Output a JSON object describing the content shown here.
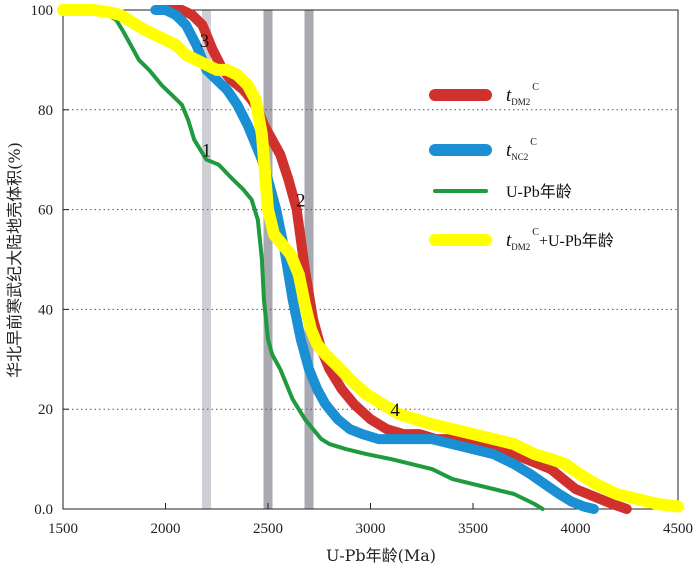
{
  "chart_data": {
    "type": "line",
    "xlabel": "U-Pb年龄(Ma)",
    "ylabel": "华北早前寒武纪大陆地壳体积(%)",
    "xlim": [
      1500,
      4500
    ],
    "ylim": [
      0,
      100
    ],
    "xticks": [
      "1500",
      "2000",
      "2500",
      "3000",
      "3500",
      "4000",
      "4500"
    ],
    "xtick_values": [
      1500,
      2000,
      2500,
      3000,
      3500,
      4000,
      4500
    ],
    "yticks": [
      "0.0",
      "20",
      "40",
      "60",
      "80",
      "100"
    ],
    "ytick_values": [
      0,
      20,
      40,
      60,
      80,
      100
    ],
    "grid": "horizontal dotted",
    "legend_position": "right",
    "vertical_bands": [
      {
        "x": 2200,
        "color": "#cfcfd6"
      },
      {
        "x": 2500,
        "color": "#a9a9b2"
      },
      {
        "x": 2700,
        "color": "#a9a9b2"
      }
    ],
    "series": [
      {
        "name": "tDM2C",
        "legend": {
          "main": "t",
          "sub": "DM2",
          "sup": "C",
          "rest": ""
        },
        "color": "#d0312d",
        "width": 10,
        "x": [
          1960,
          2020,
          2080,
          2130,
          2180,
          2230,
          2280,
          2320,
          2380,
          2420,
          2450,
          2480,
          2520,
          2560,
          2600,
          2640,
          2680,
          2720,
          2760,
          2800,
          2860,
          2920,
          3000,
          3080,
          3160,
          3240,
          3320,
          3400,
          3500,
          3600,
          3700,
          3760,
          3820,
          3880,
          3940,
          4000,
          4060,
          4120,
          4180,
          4250
        ],
        "y": [
          100,
          100,
          100,
          99,
          97,
          92,
          88,
          86,
          84,
          82,
          80,
          77,
          74,
          71,
          66,
          60,
          48,
          38,
          32,
          28,
          24,
          21,
          18,
          16,
          15,
          15,
          14,
          14,
          13,
          12,
          11,
          10,
          9,
          8,
          6,
          4,
          3,
          2,
          1,
          0
        ]
      },
      {
        "name": "tNC2C",
        "legend": {
          "main": "t",
          "sub": "NC2",
          "sup": "C",
          "rest": ""
        },
        "color": "#1a8fd4",
        "width": 10,
        "x": [
          1950,
          2000,
          2050,
          2100,
          2150,
          2200,
          2250,
          2300,
          2350,
          2400,
          2430,
          2470,
          2500,
          2540,
          2580,
          2620,
          2660,
          2700,
          2740,
          2780,
          2840,
          2900,
          2960,
          3040,
          3120,
          3200,
          3300,
          3400,
          3500,
          3600,
          3700,
          3780,
          3850,
          3920,
          3980,
          4040,
          4090
        ],
        "y": [
          100,
          100,
          99,
          97,
          93,
          88,
          86,
          84,
          81,
          77,
          74,
          70,
          66,
          60,
          52,
          42,
          34,
          28,
          24,
          21,
          18,
          16,
          15,
          14,
          14,
          14,
          14,
          13,
          12,
          11,
          9,
          7,
          5,
          3,
          1.5,
          0.5,
          0
        ]
      },
      {
        "name": "U-Pb年龄",
        "legend": {
          "main": "U-Pb年龄",
          "sub": "",
          "sup": "",
          "rest": ""
        },
        "color": "#1f9a3e",
        "width": 4,
        "x": [
          1500,
          1700,
          1760,
          1790,
          1830,
          1870,
          1920,
          1980,
          2030,
          2080,
          2110,
          2140,
          2170,
          2200,
          2260,
          2330,
          2380,
          2420,
          2450,
          2470,
          2480,
          2500,
          2520,
          2560,
          2620,
          2680,
          2720,
          2760,
          2800,
          2880,
          2980,
          3100,
          3200,
          3300,
          3400,
          3500,
          3600,
          3700,
          3750,
          3800,
          3840
        ],
        "y": [
          100,
          99.5,
          98,
          96,
          93,
          90,
          88,
          85,
          83,
          81,
          78,
          74,
          72,
          70,
          69,
          66,
          64,
          62,
          58,
          50,
          42,
          34,
          31,
          28,
          22,
          18,
          16,
          14,
          13,
          12,
          11,
          10,
          9,
          8,
          6,
          5,
          4,
          3,
          2,
          1,
          0
        ]
      },
      {
        "name": "tDM2C+U-Pb年龄",
        "legend": {
          "main": "t",
          "sub": "DM2",
          "sup": "C",
          "rest": "+U-Pb年龄"
        },
        "color": "#ffff00",
        "width": 12,
        "x": [
          1500,
          1650,
          1730,
          1780,
          1820,
          1860,
          1900,
          1950,
          2000,
          2050,
          2100,
          2150,
          2200,
          2250,
          2300,
          2350,
          2400,
          2440,
          2470,
          2500,
          2530,
          2570,
          2610,
          2650,
          2680,
          2710,
          2740,
          2780,
          2830,
          2900,
          2980,
          3060,
          3140,
          3220,
          3300,
          3400,
          3500,
          3600,
          3700,
          3800,
          3880,
          3950,
          4020,
          4100,
          4200,
          4300,
          4400,
          4500
        ],
        "y": [
          100,
          100,
          99.5,
          99,
          98,
          97,
          96,
          95,
          94,
          93,
          91,
          90,
          89,
          88,
          88,
          87,
          85,
          82,
          75,
          60,
          55,
          53,
          51,
          47,
          41,
          36,
          33,
          31,
          29,
          26,
          23,
          21,
          19,
          18,
          17,
          16,
          15,
          14,
          13,
          11,
          10,
          9,
          7,
          5,
          3,
          2,
          1,
          0.5
        ]
      }
    ],
    "annotations": [
      {
        "text": "1",
        "x": 2200,
        "y": 72
      },
      {
        "text": "2",
        "x": 2660,
        "y": 62
      },
      {
        "text": "3",
        "x": 2190,
        "y": 94
      },
      {
        "text": "4",
        "x": 3120,
        "y": 20
      }
    ]
  }
}
